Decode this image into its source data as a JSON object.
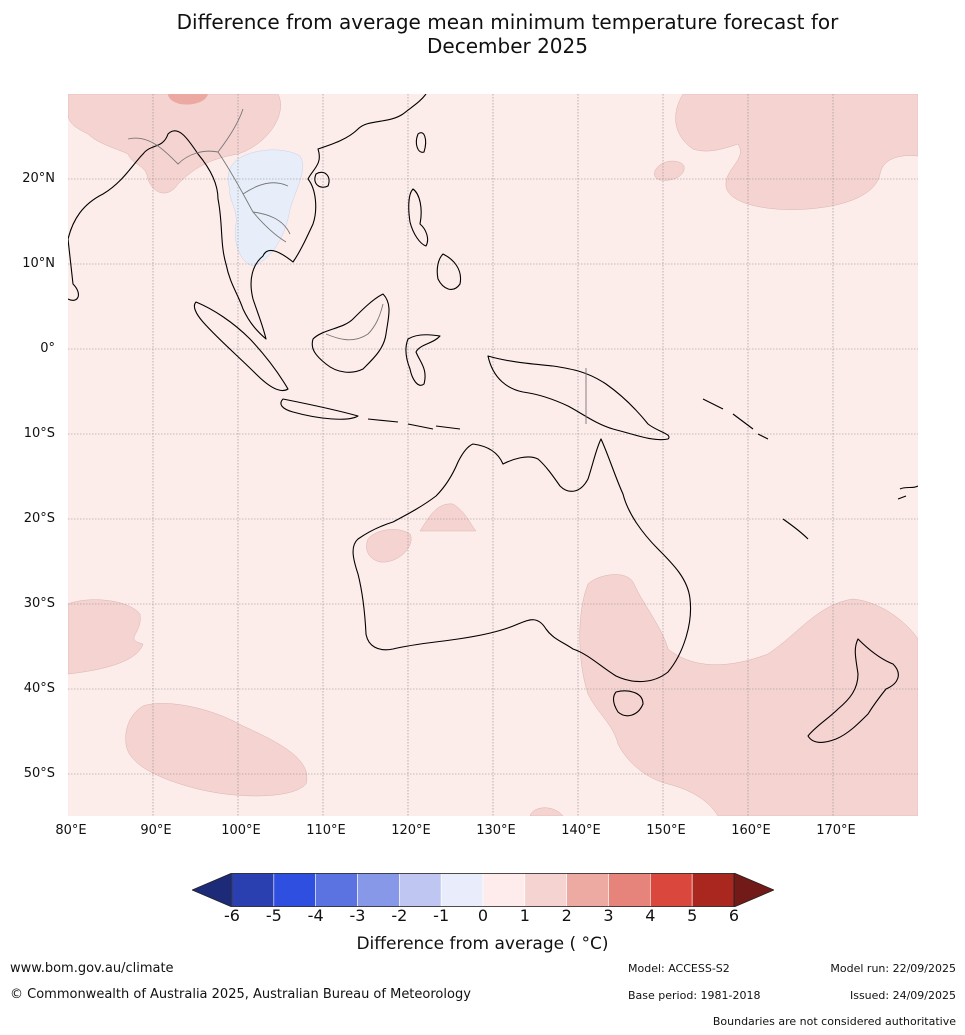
{
  "title": {
    "line1": "Difference from average mean minimum temperature forecast for",
    "line2": "December 2025"
  },
  "map": {
    "extent": {
      "lon_min": 80,
      "lon_max": 180,
      "lat_min": -55,
      "lat_max": 30
    },
    "lat_labels": [
      "20°N",
      "10°N",
      "0°",
      "10°S",
      "20°S",
      "30°S",
      "40°S",
      "50°S"
    ],
    "lon_labels": [
      "80°E",
      "90°E",
      "100°E",
      "110°E",
      "120°E",
      "130°E",
      "140°E",
      "150°E",
      "160°E",
      "170°E"
    ],
    "background_color": "#fcecea",
    "warm_region_color": "#f5d3d1",
    "cool_region_color": "#e8eef9",
    "hot_region_color": "#eca9a2"
  },
  "colorbar": {
    "ticks": [
      "-6",
      "-5",
      "-4",
      "-3",
      "-2",
      "-1",
      "0",
      "1",
      "2",
      "3",
      "4",
      "5",
      "6"
    ],
    "colors": [
      "#1d2a78",
      "#2a3fb0",
      "#2f4fe0",
      "#5b73e0",
      "#8898e8",
      "#bfc6f2",
      "#e9edfb",
      "#fdeceb",
      "#f5d3d1",
      "#ecaaa3",
      "#e6837b",
      "#d9473d",
      "#a9271f",
      "#711a17"
    ],
    "label": "Difference from average ( °C)"
  },
  "footer": {
    "website": "www.bom.gov.au/climate",
    "copyright": "© Commonwealth of Australia 2025, Australian Bureau of Meteorology",
    "model": "Model: ACCESS-S2",
    "base_period": "Base period: 1981-2018",
    "model_run": "Model run: 22/09/2025",
    "issued": "Issued: 24/09/2025",
    "disclaimer": "Boundaries are not considered authoritative"
  }
}
